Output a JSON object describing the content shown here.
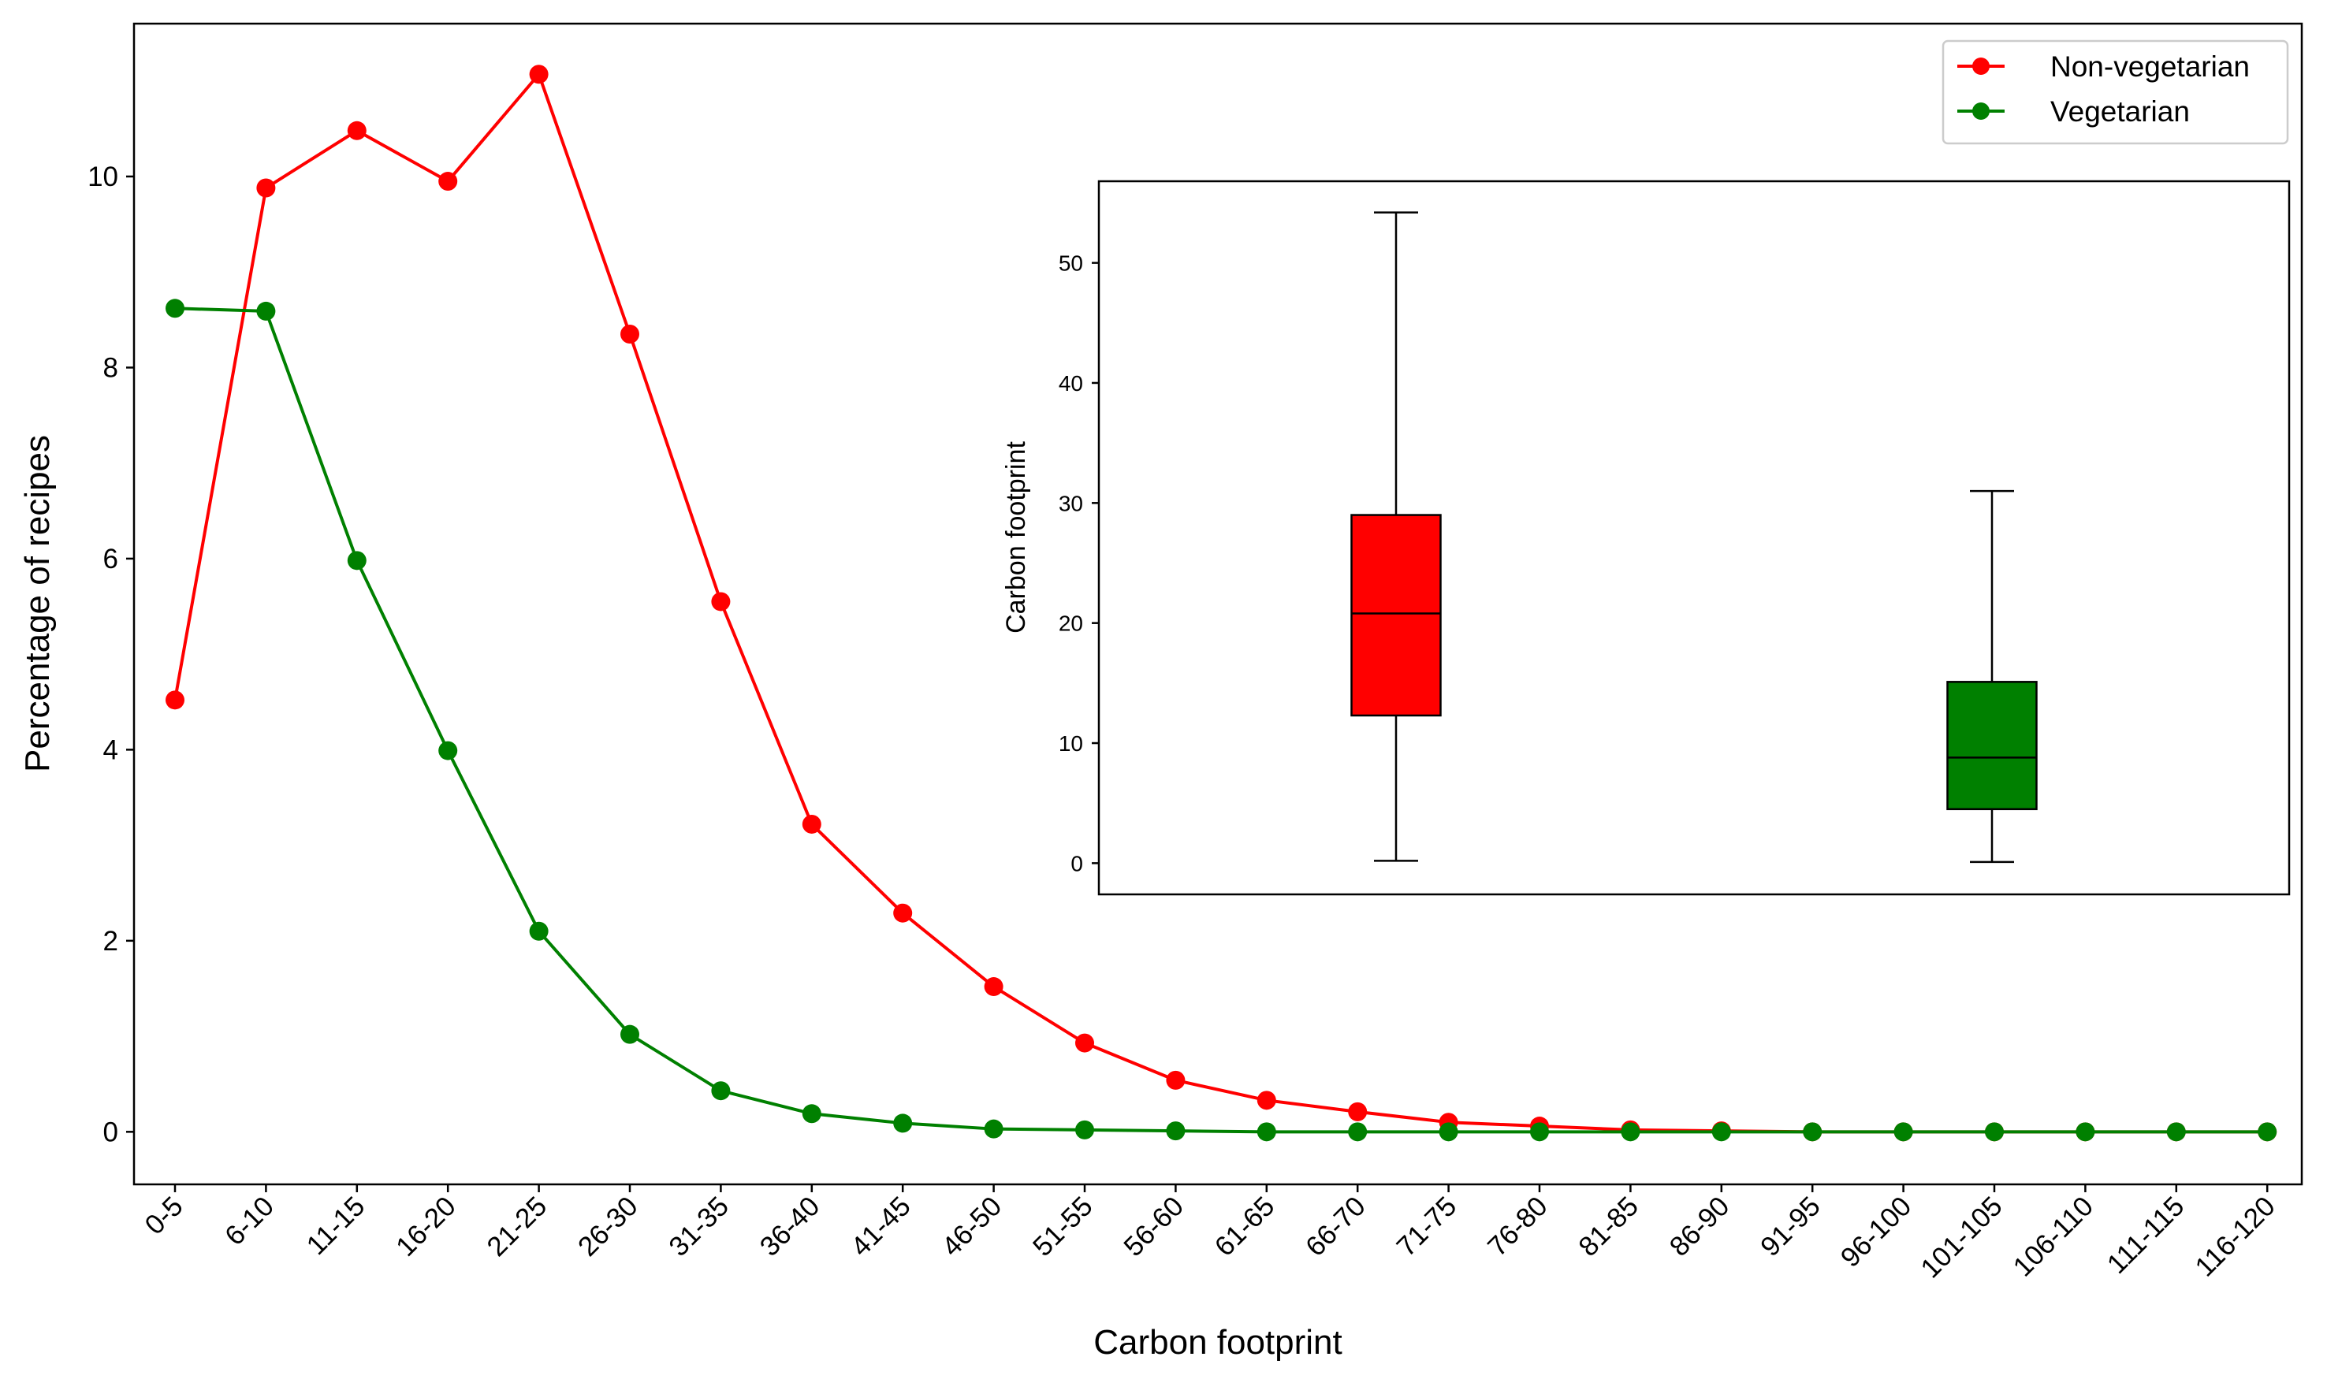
{
  "chart_data": [
    {
      "type": "line",
      "xlabel": "Carbon footprint",
      "ylabel": "Percentage of recipes",
      "categories": [
        "0-5",
        "6-10",
        "11-15",
        "16-20",
        "21-25",
        "26-30",
        "31-35",
        "36-40",
        "41-45",
        "46-50",
        "51-55",
        "56-60",
        "61-65",
        "66-70",
        "71-75",
        "76-80",
        "81-85",
        "86-90",
        "91-95",
        "96-100",
        "101-105",
        "106-110",
        "111-115",
        "116-120"
      ],
      "ylim": [
        -0.55,
        11.6
      ],
      "yticks": [
        0,
        2,
        4,
        6,
        8,
        10
      ],
      "grid": false,
      "legend_position": "top-right",
      "series": [
        {
          "name": "Non-vegetarian",
          "color": "#ff0000",
          "marker": "circle",
          "values": [
            4.52,
            9.88,
            10.48,
            9.95,
            11.07,
            8.35,
            5.55,
            3.22,
            2.29,
            1.52,
            0.93,
            0.54,
            0.33,
            0.21,
            0.1,
            0.06,
            0.02,
            0.01,
            0.0,
            0.0,
            0.0,
            0.0,
            0.0,
            0.0
          ]
        },
        {
          "name": "Vegetarian",
          "color": "#008000",
          "marker": "circle",
          "values": [
            8.62,
            8.59,
            5.98,
            3.99,
            2.1,
            1.02,
            0.43,
            0.19,
            0.09,
            0.03,
            0.02,
            0.01,
            0.0,
            0.0,
            0.0,
            0.0,
            0.0,
            0.0,
            0.0,
            0.0,
            0.0,
            0.0,
            0.0,
            0.0
          ]
        }
      ]
    },
    {
      "type": "box",
      "ylabel": "Carbon footprint",
      "ylim": [
        -2.6,
        56.8
      ],
      "yticks": [
        0,
        10,
        20,
        30,
        40,
        50
      ],
      "xticks_visible": false,
      "boxes": [
        {
          "color": "#ff0000",
          "whisker_low": 0.2,
          "q1": 12.3,
          "median": 20.8,
          "q3": 29.0,
          "whisker_high": 54.2
        },
        {
          "color": "#008000",
          "whisker_low": 0.1,
          "q1": 4.5,
          "median": 8.8,
          "q3": 15.1,
          "whisker_high": 31.0
        }
      ]
    }
  ]
}
